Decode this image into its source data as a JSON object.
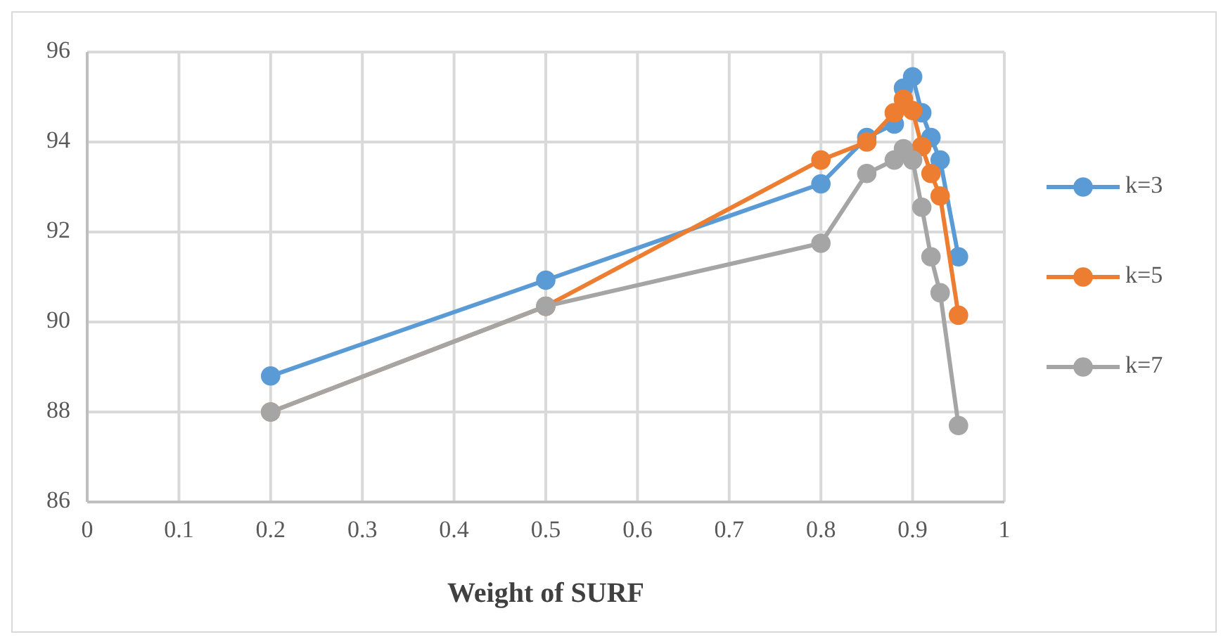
{
  "chart_data": {
    "type": "line",
    "xlabel": "Weight of SURF",
    "x": [
      0.2,
      0.5,
      0.8,
      0.85,
      0.88,
      0.89,
      0.9,
      0.91,
      0.92,
      0.93,
      0.95
    ],
    "xlim": [
      0,
      1
    ],
    "xticks": [
      0,
      0.1,
      0.2,
      0.3,
      0.4,
      0.5,
      0.6,
      0.7,
      0.8,
      0.9,
      1
    ],
    "ylim": [
      86,
      96
    ],
    "yticks": [
      86,
      88,
      90,
      92,
      94,
      96
    ],
    "grid": true,
    "legend": "right",
    "marker": "circle",
    "line_style": "solid",
    "series": [
      {
        "name": "k=3",
        "color": "#5b9bd5",
        "values": [
          88.8,
          90.93,
          93.07,
          94.1,
          94.4,
          95.2,
          95.45,
          94.65,
          94.1,
          93.6,
          91.45
        ]
      },
      {
        "name": "k=5",
        "color": "#ed7d31",
        "values": [
          88.0,
          90.35,
          93.6,
          94.0,
          94.65,
          94.95,
          94.7,
          93.9,
          93.3,
          92.8,
          90.15
        ]
      },
      {
        "name": "k=7",
        "color": "#a5a5a5",
        "values": [
          88.0,
          90.35,
          91.75,
          93.3,
          93.6,
          93.85,
          93.6,
          92.55,
          91.45,
          90.65,
          87.7
        ]
      }
    ]
  }
}
